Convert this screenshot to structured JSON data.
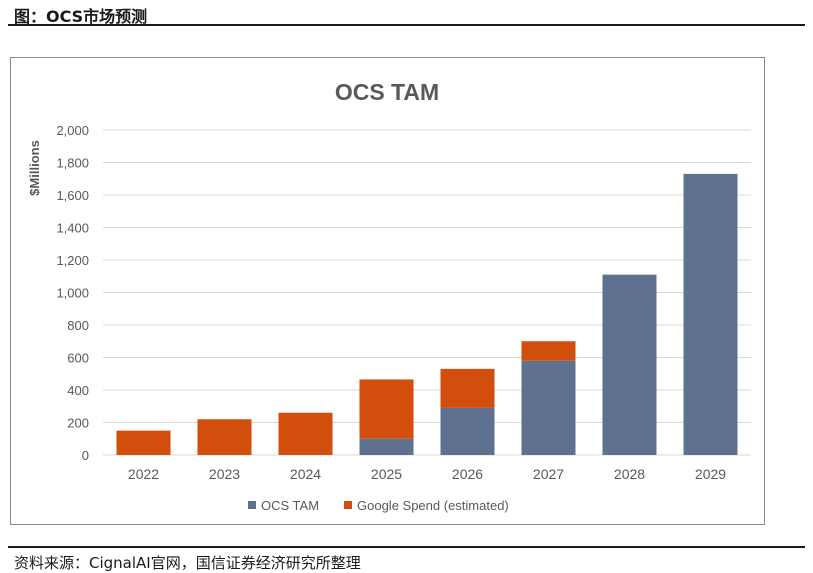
{
  "figure_title": "图：OCS市场预测",
  "source_note": "资料来源：CignalAI官网，国信证券经济研究所整理",
  "colors": {
    "ocs_tam": "#5f7190",
    "google_spend": "#d24e0c",
    "grid": "#d9d9d9",
    "text": "#595959",
    "title_text": "#595959"
  },
  "chart_data": {
    "type": "bar",
    "stacked": true,
    "title": "OCS TAM",
    "xlabel": "",
    "ylabel": "$Millions",
    "ylim": [
      0,
      2000
    ],
    "yticks": [
      0,
      200,
      400,
      600,
      800,
      1000,
      1200,
      1400,
      1600,
      1800,
      2000
    ],
    "ytick_labels": [
      "0",
      "200",
      "400",
      "600",
      "800",
      "1,000",
      "1,200",
      "1,400",
      "1,600",
      "1,800",
      "2,000"
    ],
    "categories": [
      "2022",
      "2023",
      "2024",
      "2025",
      "2026",
      "2027",
      "2028",
      "2029"
    ],
    "series": [
      {
        "name": "OCS TAM",
        "values": [
          0,
          0,
          0,
          100,
          290,
          580,
          1110,
          1730
        ]
      },
      {
        "name": "Google Spend (estimated)",
        "values": [
          150,
          220,
          260,
          365,
          240,
          120,
          0,
          0
        ]
      }
    ],
    "legend": [
      "OCS TAM",
      "Google Spend (estimated)"
    ],
    "legend_position": "bottom",
    "grid": true
  }
}
